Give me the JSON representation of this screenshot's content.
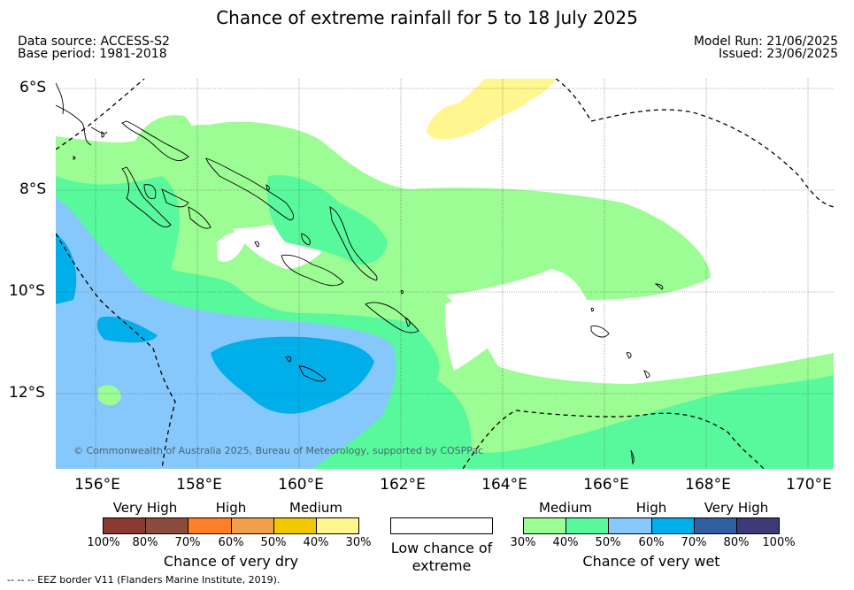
{
  "title": "Chance of extreme rainfall for 5 to 18 July 2025",
  "data_source": "Data source: ACCESS-S2",
  "base_period": "Base period: 1981-2018",
  "model_run": "Model Run: 21/06/2025",
  "issued": "Issued: 23/06/2025",
  "lat_labels": [
    "6°S",
    "8°S",
    "10°S",
    "12°S"
  ],
  "lon_labels": [
    "156°E",
    "158°E",
    "160°E",
    "162°E",
    "164°E",
    "166°E",
    "168°E",
    "170°E"
  ],
  "copyright": "© Commonwealth of Australia 2025, Bureau of Meteorology, supported by COSPPac",
  "dry_legend": {
    "categories": [
      "Very High",
      "High",
      "Medium"
    ],
    "ticks": [
      "100%",
      "80%",
      "70%",
      "60%",
      "50%",
      "40%",
      "30%"
    ],
    "colors": [
      "#8b3a32",
      "#8b4c3e",
      "#ff7f27",
      "#f0a04b",
      "#f0c800",
      "#fff68f"
    ],
    "title": "Chance of very dry"
  },
  "low_legend": {
    "text": "Low chance of extreme",
    "color": "#ffffff"
  },
  "wet_legend": {
    "categories": [
      "Medium",
      "High",
      "Very High"
    ],
    "ticks": [
      "30%",
      "40%",
      "50%",
      "60%",
      "70%",
      "80%",
      "100%"
    ],
    "colors": [
      "#9cfd94",
      "#57f99c",
      "#86c8fb",
      "#00aeea",
      "#30609f",
      "#3d3a78"
    ],
    "title": "Chance of very wet"
  },
  "eez_note": "-- -- -- EEZ border V11 (Flanders Marine Institute, 2019).",
  "map_colors": {
    "wet_medium": "#9cfd94",
    "wet_medium_high": "#57f99c",
    "wet_high": "#86c8fb",
    "wet_high_70": "#00aeea",
    "dry_medium": "#fff68f"
  }
}
